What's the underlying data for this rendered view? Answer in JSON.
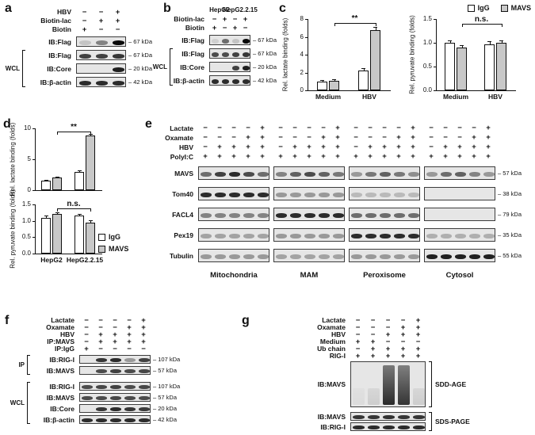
{
  "figure": {
    "panel_labels": {
      "a": "a",
      "b": "b",
      "c": "c",
      "d": "d",
      "e": "e",
      "f": "f",
      "g": "g"
    }
  },
  "colors": {
    "igg_fill": "#ffffff",
    "mavs_fill": "#c8c8c8",
    "band": "#0a0a0a"
  },
  "legend_items": [
    {
      "label": "IgG",
      "fill": "#ffffff"
    },
    {
      "label": "MAVS",
      "fill": "#c8c8c8"
    }
  ],
  "panel_a": {
    "conditions": [
      {
        "name": "HBV",
        "signs": [
          "−",
          "−",
          "+"
        ]
      },
      {
        "name": "Biotin-lac",
        "signs": [
          "−",
          "+",
          "+"
        ]
      },
      {
        "name": "Biotin",
        "signs": [
          "+",
          "−",
          "−"
        ]
      }
    ],
    "strips": [
      {
        "label": "IB:Flag",
        "kda": "– 67 kDa",
        "bands": [
          [
            0.15,
            0.45,
            1.0
          ]
        ]
      },
      {
        "label": "IB:Flag",
        "kda": "– 67 kDa",
        "bands": [
          [
            0.75,
            0.75,
            0.8
          ]
        ]
      },
      {
        "label": "IB:Core",
        "kda": "– 20 kDa",
        "bands": [
          [
            0,
            0,
            0.9
          ]
        ]
      },
      {
        "label": "IB:β-actin",
        "kda": "– 42 kDa",
        "bands": [
          [
            0.85,
            0.85,
            0.85
          ]
        ]
      }
    ],
    "brackets": [
      {
        "label": "WCL",
        "from": 1,
        "to": 3,
        "side": "left"
      }
    ]
  },
  "panel_b": {
    "group_headers": [
      "HepG2",
      "HepG2.2.15"
    ],
    "conditions": [
      {
        "name": "Biotin-lac",
        "signs": [
          "−",
          "+",
          "−",
          "+"
        ]
      },
      {
        "name": "Biotin",
        "signs": [
          "+",
          "−",
          "+",
          "−"
        ]
      }
    ],
    "strips": [
      {
        "label": "IB:Flag",
        "kda": "– 67 kDa",
        "bands": [
          [
            0.1,
            0.55,
            0.15,
            1.0
          ]
        ]
      },
      {
        "label": "IB:Flag",
        "kda": "– 67 kDa",
        "bands": [
          [
            0.7,
            0.7,
            0.75,
            0.8
          ]
        ]
      },
      {
        "label": "IB:Core",
        "kda": "– 20 kDa",
        "bands": [
          [
            0,
            0,
            0.75,
            0.9
          ]
        ]
      },
      {
        "label": "IB:β-actin",
        "kda": "– 42 kDa",
        "bands": [
          [
            0.85,
            0.85,
            0.85,
            0.85
          ]
        ]
      }
    ],
    "brackets": [
      {
        "label": "WCL",
        "from": 1,
        "to": 3,
        "side": "left"
      }
    ]
  },
  "chart_data": [
    {
      "id": "c_lactate",
      "type": "bar",
      "ylabel": "Rel. lactate binding (folds)",
      "ylim": [
        0,
        8
      ],
      "yticks": [
        "0",
        "2",
        "4",
        "6",
        "8"
      ],
      "categories": [
        "Medium",
        "HBV"
      ],
      "legend": [
        "IgG",
        "MAVS"
      ],
      "series": [
        {
          "name": "IgG",
          "values": [
            1.0,
            2.2
          ],
          "errors": [
            0.15,
            0.25
          ]
        },
        {
          "name": "MAVS",
          "values": [
            1.1,
            6.8
          ],
          "errors": [
            0.15,
            0.3
          ]
        }
      ],
      "sig": {
        "label": "**",
        "from": 0,
        "to": 1
      }
    },
    {
      "id": "c_pyruvate",
      "type": "bar",
      "ylabel": "Rel. pyruvate binding (folds)",
      "ylim": [
        0,
        1.5
      ],
      "yticks": [
        "0.0",
        "0.5",
        "1.0",
        "1.5"
      ],
      "categories": [
        "Medium",
        "HBV"
      ],
      "legend": [
        "IgG",
        "MAVS"
      ],
      "series": [
        {
          "name": "IgG",
          "values": [
            1.0,
            0.97
          ],
          "errors": [
            0.05,
            0.06
          ]
        },
        {
          "name": "MAVS",
          "values": [
            0.9,
            1.0
          ],
          "errors": [
            0.05,
            0.05
          ]
        }
      ],
      "sig": {
        "label": "n.s.",
        "from": 0,
        "to": 1
      }
    },
    {
      "id": "d_lactate",
      "type": "bar",
      "ylabel": "Rel. lactate binding (folds)",
      "ylim": [
        0,
        10
      ],
      "yticks": [
        "0",
        "5",
        "10"
      ],
      "categories": [
        "HepG2",
        "HepG2.2.15"
      ],
      "legend": [
        "IgG",
        "MAVS"
      ],
      "series": [
        {
          "name": "IgG",
          "values": [
            1.5,
            3.0
          ],
          "errors": [
            0.2,
            0.25
          ]
        },
        {
          "name": "MAVS",
          "values": [
            2.0,
            8.8
          ],
          "errors": [
            0.2,
            0.3
          ]
        }
      ],
      "sig": {
        "label": "**",
        "from": 0,
        "to": 1
      }
    },
    {
      "id": "d_pyruvate",
      "type": "bar",
      "ylabel": "Rel. pyruvate binding (folds)",
      "ylim": [
        0,
        1.5
      ],
      "yticks": [
        "0.0",
        "0.5",
        "1.0",
        "1.5"
      ],
      "categories": [
        "HepG2",
        "HepG2.2.15"
      ],
      "legend": [
        "IgG",
        "MAVS"
      ],
      "series": [
        {
          "name": "IgG",
          "values": [
            1.1,
            1.15
          ],
          "errors": [
            0.07,
            0.07
          ]
        },
        {
          "name": "MAVS",
          "values": [
            1.2,
            0.95
          ],
          "errors": [
            0.07,
            0.07
          ]
        }
      ],
      "sig": {
        "label": "n.s.",
        "from": 0,
        "to": 1
      }
    }
  ],
  "panel_e": {
    "conditions": [
      {
        "name": "Lactate",
        "signs": [
          "−",
          "−",
          "−",
          "−",
          "+"
        ]
      },
      {
        "name": "Oxamate",
        "signs": [
          "−",
          "−",
          "−",
          "+",
          "+"
        ]
      },
      {
        "name": "HBV",
        "signs": [
          "−",
          "+",
          "+",
          "+",
          "+"
        ]
      },
      {
        "name": "PolyI:C",
        "signs": [
          "+",
          "+",
          "+",
          "+",
          "+"
        ]
      }
    ],
    "strips": [
      {
        "label": "MAVS",
        "kda": "– 57 kDa",
        "bands": [
          [
            0.55,
            0.75,
            0.85,
            0.7,
            0.55
          ],
          [
            0.45,
            0.6,
            0.7,
            0.6,
            0.5
          ],
          [
            0.35,
            0.5,
            0.6,
            0.5,
            0.4
          ],
          [
            0.35,
            0.55,
            0.6,
            0.45,
            0.35
          ]
        ]
      },
      {
        "label": "Tom40",
        "kda": "– 38 kDa",
        "bands": [
          [
            0.85,
            0.85,
            0.85,
            0.85,
            0.85
          ],
          [
            0.35,
            0.35,
            0.35,
            0.35,
            0.35
          ],
          [
            0.2,
            0.2,
            0.2,
            0.2,
            0.2
          ],
          [
            0,
            0,
            0,
            0,
            0
          ]
        ]
      },
      {
        "label": "FACL4",
        "kda": "– 79 kDa",
        "bands": [
          [
            0.45,
            0.45,
            0.45,
            0.45,
            0.45
          ],
          [
            0.85,
            0.85,
            0.85,
            0.85,
            0.85
          ],
          [
            0.55,
            0.55,
            0.55,
            0.55,
            0.55
          ],
          [
            0,
            0,
            0,
            0,
            0
          ]
        ]
      },
      {
        "label": "Pex19",
        "kda": "– 35 kDa",
        "bands": [
          [
            0.3,
            0.3,
            0.3,
            0.3,
            0.3
          ],
          [
            0.35,
            0.35,
            0.35,
            0.35,
            0.35
          ],
          [
            0.85,
            0.85,
            0.85,
            0.85,
            0.85
          ],
          [
            0.25,
            0.25,
            0.25,
            0.25,
            0.25
          ]
        ]
      },
      {
        "label": "Tubulin",
        "kda": "– 55 kDa",
        "bands": [
          [
            0.35,
            0.35,
            0.35,
            0.35,
            0.35
          ],
          [
            0.3,
            0.3,
            0.3,
            0.3,
            0.3
          ],
          [
            0.35,
            0.35,
            0.35,
            0.35,
            0.35
          ],
          [
            0.9,
            0.9,
            0.9,
            0.9,
            0.9
          ]
        ]
      }
    ],
    "group_labels": [
      "Mitochondria",
      "MAM",
      "Peroxisome",
      "Cytosol"
    ]
  },
  "panel_f": {
    "conditions": [
      {
        "name": "Lactate",
        "signs": [
          "−",
          "−",
          "−",
          "−",
          "+"
        ]
      },
      {
        "name": "Oxamate",
        "signs": [
          "−",
          "−",
          "−",
          "+",
          "+"
        ]
      },
      {
        "name": "HBV",
        "signs": [
          "−",
          "+",
          "+",
          "+",
          "+"
        ]
      },
      {
        "name": "IP:MAVS",
        "signs": [
          "−",
          "+",
          "+",
          "+",
          "+"
        ]
      },
      {
        "name": "IP:IgG",
        "signs": [
          "+",
          "−",
          "−",
          "−",
          "−"
        ]
      }
    ],
    "strips": [
      {
        "label": "IB:RIG-I",
        "kda": "– 107 kDa",
        "bands": [
          [
            0,
            0.8,
            0.85,
            0.35,
            0.75
          ]
        ]
      },
      {
        "label": "IB:MAVS",
        "kda": "– 57 kDa",
        "bands": [
          [
            0,
            0.7,
            0.75,
            0.7,
            0.72
          ]
        ]
      },
      {
        "label": "IB:RIG-I",
        "kda": "– 107 kDa",
        "bands": [
          [
            0.7,
            0.72,
            0.75,
            0.7,
            0.72
          ]
        ],
        "gap_before": true
      },
      {
        "label": "IB:MAVS",
        "kda": "– 57 kDa",
        "bands": [
          [
            0.7,
            0.7,
            0.72,
            0.7,
            0.7
          ]
        ]
      },
      {
        "label": "IB:Core",
        "kda": "– 20 kDa",
        "bands": [
          [
            0,
            0.8,
            0.85,
            0.8,
            0.78
          ]
        ]
      },
      {
        "label": "IB:β-actin",
        "kda": "– 42 kDa",
        "bands": [
          [
            0.85,
            0.85,
            0.85,
            0.85,
            0.85
          ]
        ]
      }
    ],
    "brackets": [
      {
        "label": "IP",
        "from": 0,
        "to": 1,
        "side": "left"
      },
      {
        "label": "WCL",
        "from": 2,
        "to": 5,
        "side": "left"
      }
    ]
  },
  "panel_g": {
    "conditions": [
      {
        "name": "Lactate",
        "signs": [
          "−",
          "−",
          "−",
          "−",
          "+"
        ]
      },
      {
        "name": "Oxamate",
        "signs": [
          "−",
          "−",
          "−",
          "+",
          "+"
        ]
      },
      {
        "name": "HBV",
        "signs": [
          "−",
          "−",
          "+",
          "+",
          "+"
        ]
      },
      {
        "name": "Medium",
        "signs": [
          "+",
          "+",
          "−",
          "−",
          "−"
        ]
      },
      {
        "name": "Ub chain",
        "signs": [
          "−",
          "+",
          "+",
          "+",
          "+"
        ]
      },
      {
        "name": "RIG-I",
        "signs": [
          "+",
          "+",
          "+",
          "+",
          "+"
        ]
      }
    ],
    "strips": [
      {
        "label": "IB:MAVS",
        "kda": "",
        "h": 58,
        "smear": true,
        "bands": [
          [
            0.05,
            0.12,
            0.9,
            0.85,
            0.12
          ]
        ]
      },
      {
        "label": "IB:MAVS",
        "kda": "",
        "bands": [
          [
            0.8,
            0.8,
            0.82,
            0.8,
            0.8
          ]
        ],
        "gap_before": true
      },
      {
        "label": "IB:RIG-I",
        "kda": "",
        "bands": [
          [
            0.85,
            0.85,
            0.85,
            0.85,
            0.85
          ]
        ]
      }
    ],
    "brackets": [
      {
        "label": "SDD-AGE",
        "from": 0,
        "to": 0,
        "side": "right"
      },
      {
        "label": "SDS-PAGE",
        "from": 1,
        "to": 2,
        "side": "right"
      }
    ]
  }
}
